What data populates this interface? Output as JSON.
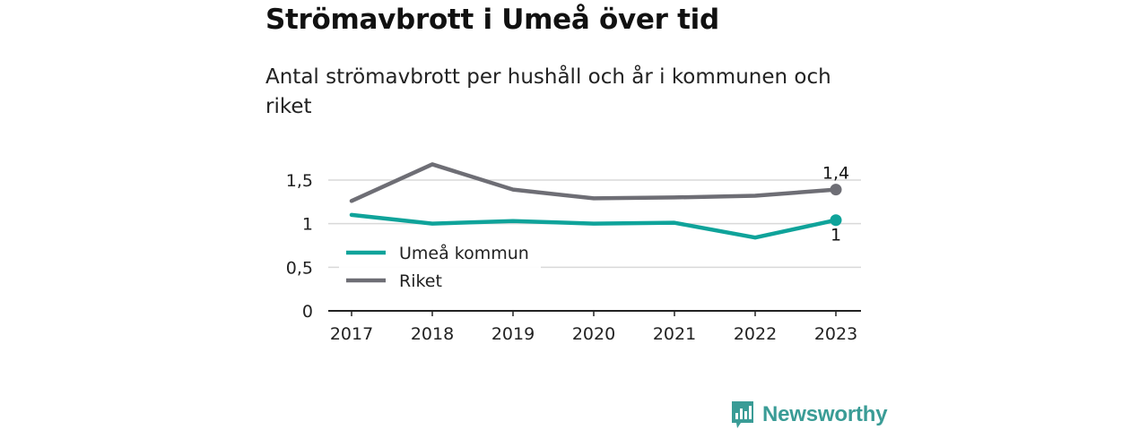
{
  "header": {
    "title": "Strömavbrott i Umeå över tid",
    "subtitle": "Antal strömavbrott per hushåll och år i kommunen och riket"
  },
  "brand": {
    "name": "Newsworthy",
    "icon": "newsworthy-logo-icon",
    "color": "#3a9c96"
  },
  "chart_data": {
    "type": "line",
    "x": [
      "2017",
      "2018",
      "2019",
      "2020",
      "2021",
      "2022",
      "2023"
    ],
    "ylim": [
      0,
      1.9
    ],
    "yticks": [
      {
        "value": 0,
        "label": "0"
      },
      {
        "value": 0.5,
        "label": "0,5"
      },
      {
        "value": 1,
        "label": "1"
      },
      {
        "value": 1.5,
        "label": "1,5"
      }
    ],
    "grid": true,
    "legend": "inside-left",
    "series": [
      {
        "name": "Umeå kommun",
        "color": "#0fa39a",
        "values": [
          1.1,
          1.0,
          1.03,
          1.0,
          1.01,
          0.84,
          1.04
        ],
        "end_label": "1",
        "end_label_position": "below"
      },
      {
        "name": "Riket",
        "color": "#6e6e75",
        "values": [
          1.26,
          1.68,
          1.39,
          1.29,
          1.3,
          1.32,
          1.39
        ],
        "end_label": "1,4",
        "end_label_position": "above"
      }
    ]
  }
}
